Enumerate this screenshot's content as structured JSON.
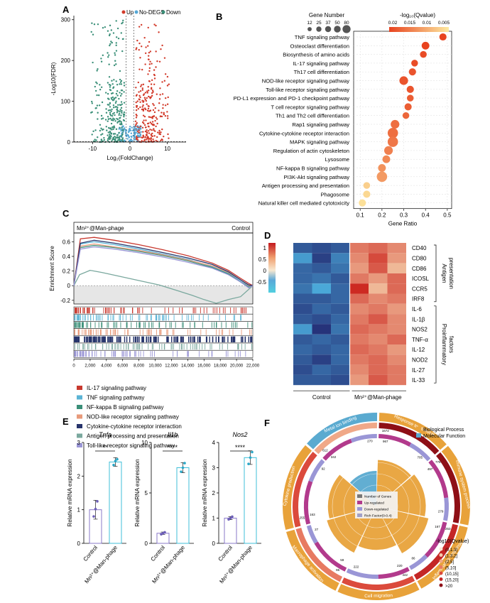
{
  "panels": {
    "A": "A",
    "B": "B",
    "C": "C",
    "D": "D",
    "E": "E",
    "F": "F"
  },
  "chart_data": [
    {
      "id": "A",
      "type": "scatter",
      "title": "",
      "legend": [
        "Up",
        "No-DEGS",
        "Down"
      ],
      "colors": {
        "up": "#d23a2a",
        "none": "#56a8d6",
        "down": "#3a8f78"
      },
      "xlabel": "Log₂(FoldChange)",
      "ylabel": "-Log10(FDR)",
      "xlim": [
        -15,
        15
      ],
      "ylim": [
        0,
        310
      ],
      "xticks": [
        -10,
        0,
        10
      ],
      "yticks": [
        0,
        100,
        200,
        300
      ],
      "threshold_x": [
        -1,
        1
      ],
      "threshold_y": 1.3
    },
    {
      "id": "B",
      "type": "scatter",
      "xlabel": "Gene Ratio",
      "xlim": [
        0.07,
        0.52
      ],
      "xticks": [
        0.1,
        0.2,
        0.3,
        0.4,
        0.5
      ],
      "size_legend_title": "Gene Number",
      "size_legend": [
        12,
        25,
        37,
        50,
        80
      ],
      "color_legend_title": "-log₁₀(Qvalue)",
      "color_legend_ticks": [
        "0.02",
        "0.015",
        "0.01",
        "0.005"
      ],
      "pathways": [
        {
          "name": "TNF signaling pathway",
          "ratio": 0.48,
          "genes": 30,
          "q": 0.001
        },
        {
          "name": "Osteoclast differentiation",
          "ratio": 0.4,
          "genes": 37,
          "q": 0.001
        },
        {
          "name": "Biosynthesis of amino acids",
          "ratio": 0.39,
          "genes": 25,
          "q": 0.002
        },
        {
          "name": "IL-17 signaling pathway",
          "ratio": 0.35,
          "genes": 25,
          "q": 0.002
        },
        {
          "name": "Th17 cell differentiation",
          "ratio": 0.34,
          "genes": 30,
          "q": 0.003
        },
        {
          "name": "NOD-like receptor signaling pathway",
          "ratio": 0.3,
          "genes": 50,
          "q": 0.003
        },
        {
          "name": "Toll-like receptor signaling pathway",
          "ratio": 0.33,
          "genes": 30,
          "q": 0.003
        },
        {
          "name": "PD-L1 expression and PD-1 checkpoint pathway",
          "ratio": 0.33,
          "genes": 25,
          "q": 0.004
        },
        {
          "name": "T cell receptor signaling pathway",
          "ratio": 0.32,
          "genes": 30,
          "q": 0.004
        },
        {
          "name": "Th1 and Th2 cell differentiation",
          "ratio": 0.31,
          "genes": 25,
          "q": 0.005
        },
        {
          "name": "Rap1 signaling pathway",
          "ratio": 0.26,
          "genes": 50,
          "q": 0.006
        },
        {
          "name": "Cytokine-cytokine receptor interaction",
          "ratio": 0.25,
          "genes": 80,
          "q": 0.006
        },
        {
          "name": "MAPK signaling pathway",
          "ratio": 0.25,
          "genes": 80,
          "q": 0.007
        },
        {
          "name": "Regulation of actin cytoskeleton",
          "ratio": 0.23,
          "genes": 50,
          "q": 0.008
        },
        {
          "name": "Lysosome",
          "ratio": 0.22,
          "genes": 37,
          "q": 0.009
        },
        {
          "name": "NF-kappa B signaling pathway",
          "ratio": 0.2,
          "genes": 37,
          "q": 0.01
        },
        {
          "name": "PI3K-Akt signaling pathway",
          "ratio": 0.2,
          "genes": 80,
          "q": 0.011
        },
        {
          "name": "Antigen processing and presentation",
          "ratio": 0.13,
          "genes": 25,
          "q": 0.017
        },
        {
          "name": "Phagosome",
          "ratio": 0.13,
          "genes": 30,
          "q": 0.018
        },
        {
          "name": "Natural killer cell mediated cytotoxicity",
          "ratio": 0.11,
          "genes": 30,
          "q": 0.019
        }
      ]
    },
    {
      "id": "C",
      "type": "line",
      "ylabel": "Enrichment Score",
      "left_label": "Mn²⁺@Man-phage",
      "right_label": "Control",
      "ylim": [
        -0.25,
        0.72
      ],
      "yticks": [
        -0.2,
        0,
        0.2,
        0.4,
        0.6
      ],
      "xlim": [
        0,
        22000
      ],
      "xticks": [
        0,
        2000,
        4000,
        6000,
        8000,
        10000,
        12000,
        14000,
        16000,
        18000,
        20000,
        22000
      ],
      "xtick_labels": [
        "0",
        "2,000",
        "4,000",
        "6,000",
        "8,000",
        "10,000",
        "12,000",
        "14,000",
        "16,000",
        "18,000",
        "20,000",
        "22,000"
      ],
      "series": [
        {
          "name": "IL-17 signaling pathway",
          "color": "#c8382e",
          "x": [
            0,
            800,
            2500,
            5000,
            8000,
            11000,
            14000,
            17000,
            19000,
            20500,
            21500,
            22000
          ],
          "y": [
            0,
            0.64,
            0.66,
            0.62,
            0.56,
            0.49,
            0.41,
            0.31,
            0.21,
            0.1,
            0.03,
            0
          ]
        },
        {
          "name": "TNF signaling pathway",
          "color": "#5bb4d5",
          "x": [
            0,
            800,
            2500,
            5000,
            8000,
            11000,
            14000,
            17000,
            19000,
            20500,
            21500,
            22000
          ],
          "y": [
            0,
            0.57,
            0.6,
            0.56,
            0.5,
            0.43,
            0.36,
            0.26,
            0.17,
            0.06,
            -0.01,
            0
          ]
        },
        {
          "name": "NF-kappa B signaling pathway",
          "color": "#3a8f78",
          "x": [
            0,
            800,
            2500,
            5000,
            8000,
            11000,
            14000,
            17000,
            19000,
            20500,
            21500,
            22000
          ],
          "y": [
            0,
            0.52,
            0.55,
            0.52,
            0.47,
            0.41,
            0.34,
            0.25,
            0.16,
            0.05,
            -0.02,
            0
          ]
        },
        {
          "name": "NOD-like receptor signaling pathway",
          "color": "#e89a7a",
          "x": [
            0,
            800,
            2500,
            5000,
            8000,
            11000,
            14000,
            17000,
            19000,
            20500,
            21500,
            22000
          ],
          "y": [
            0,
            0.54,
            0.57,
            0.53,
            0.48,
            0.42,
            0.35,
            0.27,
            0.18,
            0.08,
            0.0,
            0
          ]
        },
        {
          "name": "Cytokine-cytokine receptor interaction",
          "color": "#27346b",
          "x": [
            0,
            800,
            2500,
            5000,
            8000,
            11000,
            14000,
            17000,
            19000,
            20500,
            21500,
            22000
          ],
          "y": [
            0,
            0.58,
            0.62,
            0.58,
            0.52,
            0.45,
            0.38,
            0.29,
            0.19,
            0.08,
            0.01,
            0
          ]
        },
        {
          "name": "Antigen processing and presentation",
          "color": "#7aa89e",
          "x": [
            0,
            700,
            2000,
            3500,
            5500,
            8000,
            10500,
            12500,
            14500,
            16000,
            17500,
            19000,
            20500,
            21500,
            22000
          ],
          "y": [
            0,
            0.15,
            0.21,
            0.18,
            0.13,
            0.07,
            0.01,
            -0.06,
            -0.13,
            -0.19,
            -0.24,
            -0.19,
            -0.15,
            -0.05,
            0
          ]
        },
        {
          "name": "Toll-like receptor signaling pathway",
          "color": "#9a96d6",
          "x": [
            0,
            800,
            2500,
            5000,
            8000,
            11000,
            14000,
            17000,
            19000,
            20500,
            21500,
            22000
          ],
          "y": [
            0,
            0.5,
            0.53,
            0.5,
            0.45,
            0.39,
            0.32,
            0.24,
            0.15,
            0.05,
            -0.03,
            0
          ]
        }
      ]
    },
    {
      "id": "D",
      "type": "heatmap",
      "colorbar_ticks": [
        "1",
        "0.5",
        "0",
        "-0.5"
      ],
      "colorbar_range": [
        -1,
        1.3
      ],
      "genes": [
        "CD40",
        "CD80",
        "CD86",
        "ICOSL",
        "CCR5",
        "IRF8",
        "IL-6",
        "IL-1β",
        "NOS2",
        "TNF-α",
        "IL-12",
        "NOD2",
        "IL-27",
        "IL-33"
      ],
      "group_labels": [
        "Control",
        "Mn²⁺@Man-phage"
      ],
      "bracket_labels": [
        [
          "Antigen",
          "presentation"
        ],
        [
          "Proinflammatory",
          "factors"
        ]
      ],
      "values": [
        [
          -0.8,
          -0.9,
          -0.8,
          0.8,
          0.9,
          0.7
        ],
        [
          -0.3,
          -1.0,
          -0.5,
          0.7,
          1.1,
          0.6
        ],
        [
          -0.7,
          -0.8,
          -0.6,
          0.6,
          1.0,
          0.4
        ],
        [
          -0.7,
          -0.6,
          -0.8,
          0.8,
          0.6,
          0.9
        ],
        [
          -0.6,
          -0.2,
          -0.7,
          1.3,
          0.4,
          0.9
        ],
        [
          -0.8,
          -0.8,
          -0.7,
          0.9,
          0.7,
          0.8
        ],
        [
          -0.9,
          -0.7,
          -0.8,
          0.7,
          0.8,
          0.6
        ],
        [
          -0.8,
          -0.9,
          -0.7,
          0.8,
          1.0,
          0.7
        ],
        [
          -0.3,
          -1.1,
          -0.6,
          0.9,
          0.8,
          0.7
        ],
        [
          -0.8,
          -0.7,
          -0.8,
          0.8,
          0.7,
          0.9
        ],
        [
          -0.7,
          -0.8,
          -0.7,
          0.9,
          0.8,
          0.6
        ],
        [
          -0.8,
          -1.0,
          -0.7,
          0.8,
          0.9,
          0.7
        ],
        [
          -0.9,
          -0.7,
          -0.8,
          0.7,
          0.9,
          0.8
        ],
        [
          -0.8,
          -0.8,
          -0.9,
          0.6,
          1.0,
          0.8
        ]
      ]
    },
    {
      "id": "E",
      "type": "bar",
      "ylabel": "Relative mRNA expression",
      "categories": [
        "Control",
        "Mn²⁺@Man-phage"
      ],
      "subplots": [
        {
          "title": "Tnfa",
          "values": [
            1.0,
            2.42
          ],
          "errors": [
            0.28,
            0.13
          ],
          "ylim": [
            0,
            3
          ],
          "yticks": [
            0,
            1,
            2,
            3
          ],
          "sig": "**",
          "points": [
            [
              0.8,
              1.02,
              1.25
            ],
            [
              2.33,
              2.45,
              2.5
            ]
          ]
        },
        {
          "title": "Il1b",
          "values": [
            1.0,
            7.5
          ],
          "errors": [
            0.12,
            0.5
          ],
          "ylim": [
            0,
            10
          ],
          "yticks": [
            0,
            5,
            10
          ],
          "sig": "****",
          "points": [
            [
              0.9,
              1.0,
              1.1
            ],
            [
              7.1,
              7.5,
              7.95
            ]
          ]
        },
        {
          "title": "Nos2",
          "values": [
            1.0,
            3.4
          ],
          "errors": [
            0.06,
            0.27
          ],
          "ylim": [
            0,
            4
          ],
          "yticks": [
            0,
            1,
            2,
            3,
            4
          ],
          "sig": "****",
          "points": [
            [
              0.95,
              1.0,
              1.06
            ],
            [
              3.15,
              3.4,
              3.62
            ]
          ]
        }
      ]
    },
    {
      "id": "F",
      "type": "pie",
      "legend": [
        {
          "label": "Biological Process",
          "color": "#e8a23a"
        },
        {
          "label": "Molecular Function",
          "color": "#5aaad0"
        }
      ],
      "inner_legend": [
        "Number of Genes",
        "Up-regulated",
        "Down-regulated",
        "Rich Factor(0-0.4)"
      ],
      "qvalue_legend_title": "-log10(Qvalue)",
      "qvalue_bins": [
        {
          "label": "(0,1.3]",
          "color": "#fde9d6"
        },
        {
          "label": "(1.3,2]",
          "color": "#f6c9aa"
        },
        {
          "label": "(2,5]",
          "color": "#f0a888"
        },
        {
          "label": "(5,10]",
          "color": "#e77a62"
        },
        {
          "label": "(10,15]",
          "color": "#db4a3c"
        },
        {
          "label": "(15,20]",
          "color": "#c42726"
        },
        {
          "label": ">20",
          "color": "#8e0f16"
        }
      ],
      "terms": [
        {
          "name": "Response to stimulus",
          "category": "Biological Process",
          "genes": "1672",
          "up": "967",
          "down": "705",
          "rich": 0.31,
          "q_bin": 6
        },
        {
          "name": "Immune system process",
          "category": "Biological Process",
          "genes": "776",
          "up": "497",
          "down": "279",
          "rich": 0.34,
          "q_bin": 6
        },
        {
          "name": "Inflammatory response",
          "category": "Biological Process",
          "genes": "253",
          "up": "167",
          "down": "86",
          "rich": 0.38,
          "q_bin": 5
        },
        {
          "name": "Cell migration",
          "category": "Biological Process",
          "genes": "442",
          "up": "220",
          "down": "222",
          "rich": 0.28,
          "q_bin": 4
        },
        {
          "name": "Macrophage activation",
          "category": "Biological Process",
          "genes": "86",
          "up": "59",
          "down": "27",
          "rich": 0.36,
          "q_bin": 3
        },
        {
          "name": "Cytokine production",
          "category": "Biological Process",
          "genes": "255",
          "up": "163",
          "down": "92",
          "rich": 0.33,
          "q_bin": 4
        },
        {
          "name": "Metal ion binding",
          "category": "Molecular Function",
          "genes": "612",
          "up": "342",
          "down": "270",
          "rich": 0.2,
          "q_bin": 2
        }
      ]
    }
  ]
}
